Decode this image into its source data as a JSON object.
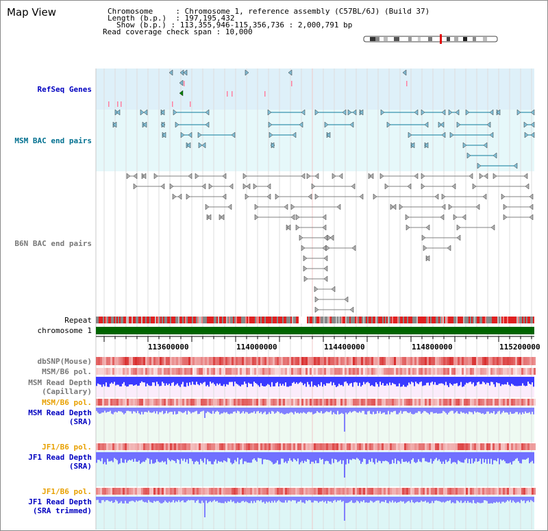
{
  "title": "Map View",
  "info": {
    "chromosome_label": "Chromosome",
    "chromosome_value": "Chromosome 1, reference assembly (C57BL/6J) (Build 37)",
    "length_label": "Length (b.p.)",
    "length_value": "197,195,432",
    "show_label": "Show (b.p.)",
    "show_value": "113,355,946-115,356,736 : 2,000,791 bp",
    "span_label": "Read coverage check span",
    "span_value": "10,000"
  },
  "tracks": {
    "refseq": "RefSeq Genes",
    "msm_bac": "MSM BAC end pairs",
    "b6n_bac": "B6N BAC end pairs",
    "repeat": "Repeat",
    "chromosome": "chromosome 1",
    "dbsnp": "dbSNP(Mouse)",
    "msm_b6_pol_1": "MSM/B6 pol.",
    "msm_read_depth_cap_1": "MSM Read Depth",
    "msm_read_depth_cap_2": "(Capillary)",
    "msm_b6_pol_2": "MSM/B6 pol.",
    "msm_read_depth_sra_1": "MSM Read Depth",
    "msm_read_depth_sra_2": "(SRA)",
    "jf1_b6_pol_1": "JF1/B6 pol.",
    "jf1_read_depth_sra_1": "JF1 Read Depth",
    "jf1_read_depth_sra_2": "(SRA)",
    "jf1_b6_pol_2": "JF1/B6 pol.",
    "jf1_read_depth_trim_1": "JF1 Read Depth",
    "jf1_read_depth_trim_2": "(SRA trimmed)"
  },
  "axis_ticks": [
    "113600000",
    "114000000",
    "114400000",
    "114800000",
    "115200000"
  ],
  "colors": {
    "refseq_bg": "#def0f9",
    "msm_bg": "#e6f8fa",
    "chrom": "#006400",
    "msm_feature": "#0a7a9a",
    "b6n_feature": "#7a7a7a",
    "snp_red": "#e02020",
    "depth_blue": "#3a3aff",
    "sra_blue": "#8080ff",
    "cap_bg": "#fbecfb",
    "sra_bg": "#eefaf2",
    "jf1_bg": "#ddf6f6"
  }
}
